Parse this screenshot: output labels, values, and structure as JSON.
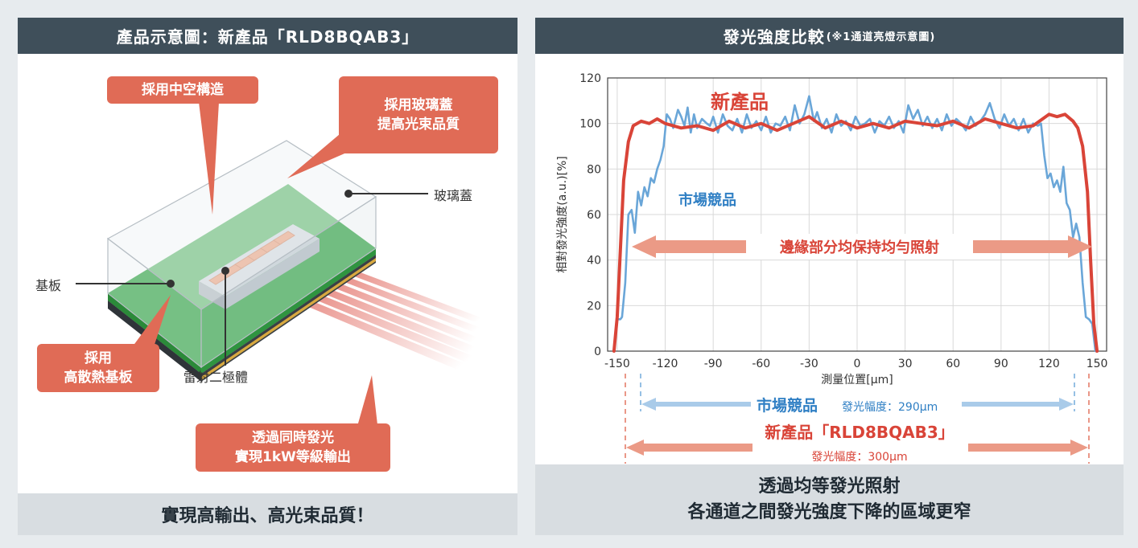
{
  "left": {
    "header": "產品示意圖：新產品「RLD8BQAB3」",
    "callouts": {
      "hollow": "採用中空構造",
      "glass_1": "採用玻璃蓋",
      "glass_2": "提高光束品質",
      "substrate_1": "採用",
      "substrate_2": "高散熱基板",
      "emit_1": "透過同時發光",
      "emit_2": "實現1kW等級輸出"
    },
    "labels": {
      "glass": "玻璃蓋",
      "substrate": "基板",
      "laser": "雷射二極體"
    },
    "footer": "實現高輸出、高光束品質！"
  },
  "right": {
    "header": "發光強度比較",
    "header_note": "(※1通道亮燈示意圖)",
    "annotation_new": "新產品",
    "annotation_market": "市場競品",
    "annotation_edge": "邊緣部分均保持均勻照射",
    "width_market_name": "市場競品",
    "width_market_value": "發光幅度：290μm",
    "width_new_name": "新產品「RLD8BQAB3」",
    "width_new_value": "發光幅度：300μm",
    "footer_line1": "透過均等發光照射",
    "footer_line2": "各通道之間發光強度下降的區域更窄"
  },
  "colors": {
    "new_product": "#d94438",
    "market": "#6aa6d8",
    "header_bg": "#3f4f5a",
    "callout": "#e06b56"
  },
  "chart_data": {
    "type": "line",
    "xlabel": "測量位置[μm]",
    "ylabel": "相對發光強度(a.u.)[%]",
    "xlim": [
      -156,
      156
    ],
    "ylim": [
      0,
      120
    ],
    "xticks": [
      -150,
      -120,
      -90,
      -60,
      -30,
      0,
      30,
      60,
      90,
      120,
      150
    ],
    "yticks": [
      0,
      20,
      40,
      60,
      80,
      100,
      120
    ],
    "series": [
      {
        "name": "新產品",
        "color": "#d94438",
        "x": [
          -152,
          -150,
          -148,
          -146,
          -143,
          -140,
          -135,
          -130,
          -125,
          -120,
          -110,
          -100,
          -90,
          -80,
          -70,
          -60,
          -50,
          -40,
          -30,
          -20,
          -10,
          0,
          10,
          20,
          30,
          40,
          50,
          60,
          70,
          80,
          90,
          100,
          110,
          120,
          125,
          130,
          135,
          138,
          141,
          144,
          146,
          148,
          150
        ],
        "y": [
          0,
          15,
          45,
          75,
          92,
          99,
          101,
          100,
          102,
          100,
          98,
          99,
          97,
          101,
          98,
          100,
          97,
          100,
          103,
          98,
          101,
          98,
          100,
          98,
          101,
          100,
          99,
          101,
          98,
          102,
          100,
          98,
          99,
          104,
          103,
          104,
          101,
          98,
          90,
          70,
          40,
          12,
          0
        ]
      },
      {
        "name": "市場競品",
        "color": "#6aa6d8",
        "x": [
          -150,
          -148,
          -147,
          -145,
          -143,
          -141,
          -139,
          -137,
          -135,
          -133,
          -131,
          -129,
          -127,
          -125,
          -123,
          -121,
          -119,
          -117,
          -115,
          -112,
          -110,
          -108,
          -106,
          -104,
          -102,
          -100,
          -97,
          -94,
          -92,
          -90,
          -87,
          -84,
          -81,
          -78,
          -75,
          -72,
          -69,
          -66,
          -63,
          -60,
          -57,
          -54,
          -51,
          -48,
          -45,
          -42,
          -39,
          -36,
          -33,
          -30,
          -27,
          -25,
          -22,
          -19,
          -16,
          -13,
          -10,
          -7,
          -4,
          -1,
          2,
          5,
          8,
          11,
          14,
          17,
          20,
          23,
          26,
          29,
          32,
          35,
          38,
          41,
          44,
          47,
          50,
          53,
          56,
          59,
          62,
          65,
          68,
          71,
          74,
          77,
          80,
          83,
          86,
          89,
          92,
          95,
          98,
          101,
          104,
          107,
          110,
          113,
          115,
          117,
          119,
          121,
          123,
          125,
          127,
          129,
          131,
          133,
          135,
          137,
          139,
          141,
          143,
          145,
          147,
          149
        ],
        "y": [
          14,
          14,
          15,
          30,
          60,
          62,
          52,
          70,
          64,
          72,
          68,
          76,
          74,
          80,
          84,
          90,
          104,
          102,
          98,
          106,
          103,
          99,
          107,
          96,
          104,
          98,
          102,
          100,
          99,
          103,
          96,
          104,
          99,
          97,
          102,
          96,
          104,
          98,
          101,
          97,
          103,
          96,
          100,
          99,
          103,
          97,
          108,
          100,
          104,
          112,
          101,
          105,
          98,
          102,
          96,
          104,
          99,
          101,
          97,
          103,
          99,
          100,
          102,
          96,
          101,
          99,
          103,
          98,
          101,
          96,
          108,
          102,
          106,
          99,
          103,
          98,
          102,
          97,
          104,
          99,
          102,
          100,
          97,
          103,
          99,
          101,
          104,
          109,
          102,
          98,
          104,
          99,
          102,
          97,
          102,
          96,
          100,
          99,
          100,
          86,
          76,
          78,
          72,
          75,
          70,
          81,
          65,
          62,
          50,
          56,
          50,
          30,
          15,
          14,
          12,
          0
        ]
      }
    ]
  }
}
